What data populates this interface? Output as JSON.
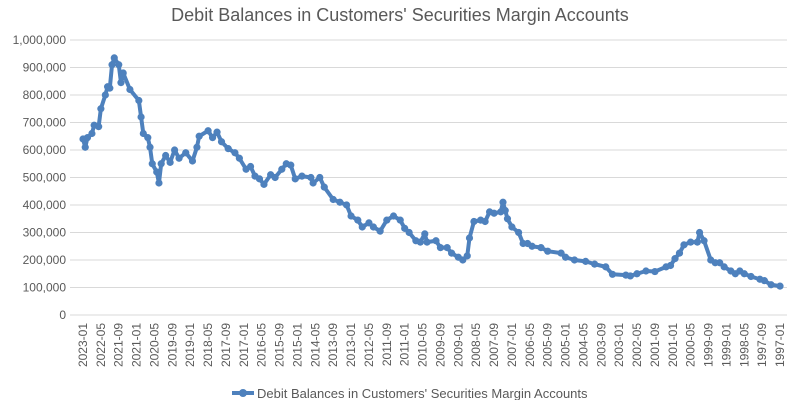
{
  "chart_data": {
    "type": "line",
    "title": "Debit Balances in Customers' Securities Margin Accounts",
    "xlabel": "",
    "ylabel": "",
    "x_order": "descending",
    "ylim": [
      0,
      1000000
    ],
    "y_ticks": [
      "0",
      "100,000",
      "200,000",
      "300,000",
      "400,000",
      "500,000",
      "600,000",
      "700,000",
      "800,000",
      "900,000",
      "1,000,000"
    ],
    "x_ticks": [
      "2023-01",
      "2022-05",
      "2021-09",
      "2021-01",
      "2020-05",
      "2019-09",
      "2019-01",
      "2018-05",
      "2017-09",
      "2017-01",
      "2016-05",
      "2015-09",
      "2015-01",
      "2014-05",
      "2013-09",
      "2013-01",
      "2012-05",
      "2011-09",
      "2011-01",
      "2010-05",
      "2009-09",
      "2009-01",
      "2008-05",
      "2007-09",
      "2007-01",
      "2006-05",
      "2005-09",
      "2005-01",
      "2004-05",
      "2003-09",
      "2003-01",
      "2002-05",
      "2001-09",
      "2001-01",
      "2000-05",
      "1999-09",
      "1999-01",
      "1998-05",
      "1997-09",
      "1997-01"
    ],
    "grid": true,
    "legend": "bottom",
    "color": "#4e81bd",
    "series": [
      {
        "name": "Debit Balances in Customers' Securities Margin Accounts",
        "points": [
          [
            "2023-01",
            640000
          ],
          [
            "2022-12",
            610000
          ],
          [
            "2022-11",
            645000
          ],
          [
            "2022-09",
            660000
          ],
          [
            "2022-08",
            690000
          ],
          [
            "2022-06",
            685000
          ],
          [
            "2022-05",
            750000
          ],
          [
            "2022-03",
            800000
          ],
          [
            "2022-02",
            830000
          ],
          [
            "2022-01",
            825000
          ],
          [
            "2021-12",
            910000
          ],
          [
            "2021-11",
            935000
          ],
          [
            "2021-09",
            910000
          ],
          [
            "2021-08",
            845000
          ],
          [
            "2021-07",
            880000
          ],
          [
            "2021-04",
            820000
          ],
          [
            "2020-12",
            780000
          ],
          [
            "2020-11",
            720000
          ],
          [
            "2020-10",
            660000
          ],
          [
            "2020-08",
            645000
          ],
          [
            "2020-07",
            610000
          ],
          [
            "2020-06",
            550000
          ],
          [
            "2020-04",
            520000
          ],
          [
            "2020-03",
            480000
          ],
          [
            "2020-02",
            550000
          ],
          [
            "2019-12",
            580000
          ],
          [
            "2019-10",
            555000
          ],
          [
            "2019-08",
            600000
          ],
          [
            "2019-06",
            570000
          ],
          [
            "2019-03",
            590000
          ],
          [
            "2018-12",
            560000
          ],
          [
            "2018-10",
            610000
          ],
          [
            "2018-09",
            650000
          ],
          [
            "2018-05",
            670000
          ],
          [
            "2018-03",
            645000
          ],
          [
            "2018-01",
            665000
          ],
          [
            "2017-11",
            630000
          ],
          [
            "2017-08",
            605000
          ],
          [
            "2017-05",
            590000
          ],
          [
            "2017-03",
            570000
          ],
          [
            "2016-12",
            530000
          ],
          [
            "2016-10",
            540000
          ],
          [
            "2016-08",
            505000
          ],
          [
            "2016-06",
            495000
          ],
          [
            "2016-04",
            475000
          ],
          [
            "2016-01",
            510000
          ],
          [
            "2015-11",
            500000
          ],
          [
            "2015-08",
            530000
          ],
          [
            "2015-06",
            550000
          ],
          [
            "2015-04",
            545000
          ],
          [
            "2015-02",
            495000
          ],
          [
            "2014-11",
            505000
          ],
          [
            "2014-07",
            500000
          ],
          [
            "2014-06",
            480000
          ],
          [
            "2014-03",
            500000
          ],
          [
            "2014-01",
            465000
          ],
          [
            "2013-09",
            420000
          ],
          [
            "2013-06",
            410000
          ],
          [
            "2013-03",
            400000
          ],
          [
            "2013-01",
            360000
          ],
          [
            "2012-10",
            345000
          ],
          [
            "2012-08",
            320000
          ],
          [
            "2012-05",
            335000
          ],
          [
            "2012-03",
            320000
          ],
          [
            "2011-12",
            305000
          ],
          [
            "2011-09",
            345000
          ],
          [
            "2011-06",
            360000
          ],
          [
            "2011-03",
            345000
          ],
          [
            "2011-01",
            315000
          ],
          [
            "2010-11",
            300000
          ],
          [
            "2010-08",
            270000
          ],
          [
            "2010-06",
            265000
          ],
          [
            "2010-04",
            295000
          ],
          [
            "2010-03",
            265000
          ],
          [
            "2009-11",
            270000
          ],
          [
            "2009-09",
            245000
          ],
          [
            "2009-06",
            245000
          ],
          [
            "2009-04",
            225000
          ],
          [
            "2009-01",
            210000
          ],
          [
            "2008-11",
            200000
          ],
          [
            "2008-09",
            215000
          ],
          [
            "2008-08",
            280000
          ],
          [
            "2008-06",
            340000
          ],
          [
            "2008-03",
            345000
          ],
          [
            "2008-01",
            340000
          ],
          [
            "2007-11",
            375000
          ],
          [
            "2007-09",
            370000
          ],
          [
            "2007-06",
            375000
          ],
          [
            "2007-05",
            410000
          ],
          [
            "2007-04",
            380000
          ],
          [
            "2007-03",
            350000
          ],
          [
            "2007-01",
            320000
          ],
          [
            "2006-10",
            300000
          ],
          [
            "2006-08",
            260000
          ],
          [
            "2006-06",
            260000
          ],
          [
            "2006-04",
            250000
          ],
          [
            "2005-12",
            245000
          ],
          [
            "2005-09",
            232000
          ],
          [
            "2005-03",
            225000
          ],
          [
            "2005-01",
            210000
          ],
          [
            "2004-09",
            200000
          ],
          [
            "2004-04",
            195000
          ],
          [
            "2003-12",
            185000
          ],
          [
            "2003-07",
            175000
          ],
          [
            "2003-04",
            148000
          ],
          [
            "2002-10",
            145000
          ],
          [
            "2002-08",
            142000
          ],
          [
            "2002-05",
            150000
          ],
          [
            "2002-01",
            160000
          ],
          [
            "2001-09",
            158000
          ],
          [
            "2001-04",
            175000
          ],
          [
            "2001-02",
            180000
          ],
          [
            "2000-12",
            205000
          ],
          [
            "2000-10",
            225000
          ],
          [
            "2000-08",
            255000
          ],
          [
            "2000-05",
            265000
          ],
          [
            "2000-02",
            265000
          ],
          [
            "2000-01",
            300000
          ],
          [
            "1999-11",
            270000
          ],
          [
            "1999-08",
            200000
          ],
          [
            "1999-06",
            190000
          ],
          [
            "1999-04",
            190000
          ],
          [
            "1999-02",
            175000
          ],
          [
            "1998-11",
            160000
          ],
          [
            "1998-09",
            150000
          ],
          [
            "1998-07",
            160000
          ],
          [
            "1998-05",
            150000
          ],
          [
            "1998-02",
            140000
          ],
          [
            "1997-10",
            130000
          ],
          [
            "1997-08",
            125000
          ],
          [
            "1997-05",
            110000
          ],
          [
            "1997-01",
            105000
          ]
        ]
      }
    ]
  }
}
